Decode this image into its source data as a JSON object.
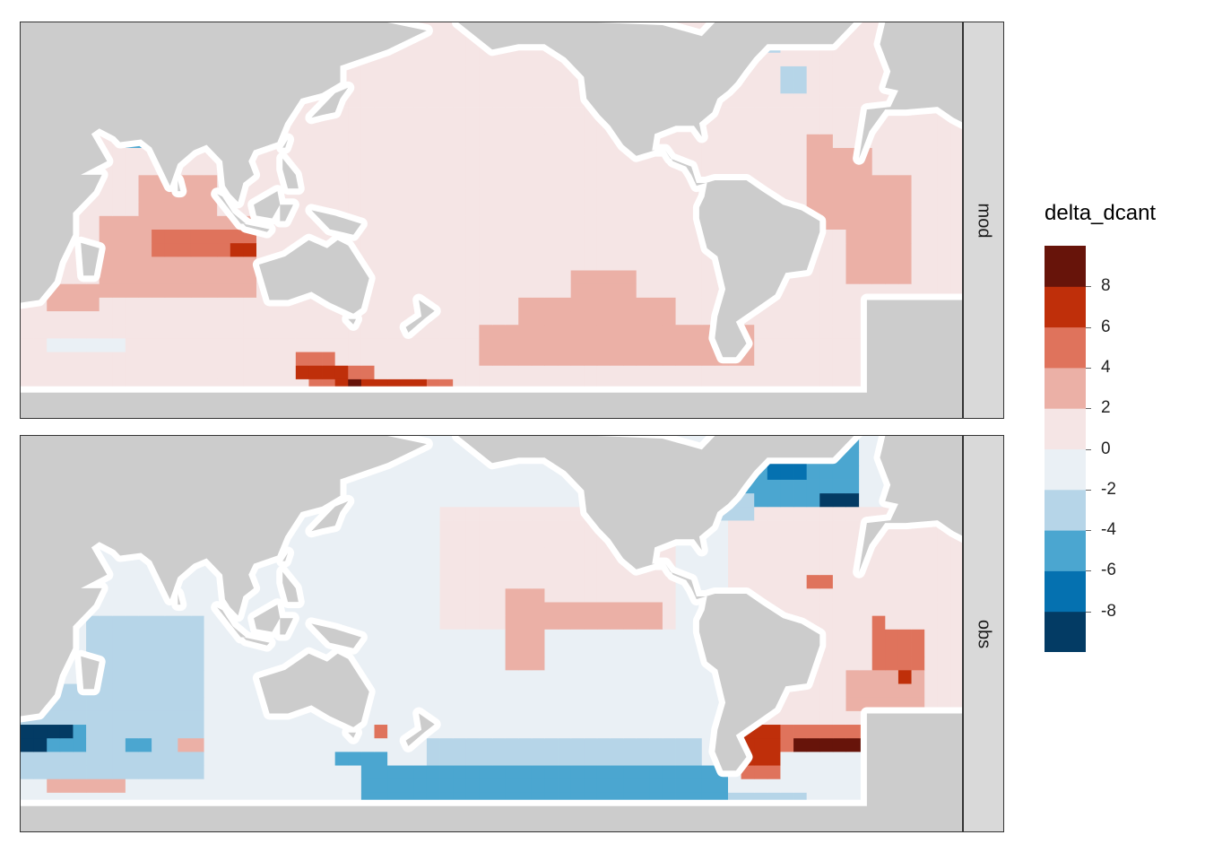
{
  "chart_data": {
    "type": "heatmap",
    "variable": "delta_dcant",
    "facets": [
      "mod",
      "obs"
    ],
    "legend": {
      "title": "delta_dcant",
      "placement": "right",
      "breaks": [
        -10,
        -8,
        -6,
        -4,
        -2,
        0,
        2,
        4,
        6,
        8,
        10
      ],
      "labels": [
        "8",
        "6",
        "4",
        "2",
        "0",
        "-2",
        "-4",
        "-6",
        "-8"
      ],
      "label_values": [
        8,
        6,
        4,
        2,
        0,
        -2,
        -4,
        -6,
        -8
      ],
      "colors": [
        "#033b64",
        "#0571b0",
        "#4ba6d0",
        "#b6d5e8",
        "#eaf0f5",
        "#f5e5e5",
        "#ebb0a6",
        "#df735c",
        "#bf2f0a",
        "#67140a"
      ]
    },
    "land_color": "#cccccc",
    "map": {
      "lon_range": [
        20,
        380
      ],
      "lat_range": [
        -78,
        68
      ],
      "cell_deg": 5,
      "facet_mod": [
        {
          "lon": [
            270,
            305
          ],
          "lat": [
            -45,
            -35
          ],
          "v": 1
        },
        {
          "lon": [
            195,
            300
          ],
          "lat": [
            -60,
            -45
          ],
          "v": 3
        },
        {
          "lon": [
            210,
            270
          ],
          "lat": [
            -45,
            -35
          ],
          "v": 3
        },
        {
          "lon": [
            230,
            255
          ],
          "lat": [
            -35,
            -25
          ],
          "v": 3
        },
        {
          "lon": [
            125,
            140
          ],
          "lat": [
            -65,
            -55
          ],
          "v": 5
        },
        {
          "lon": [
            130,
            155
          ],
          "lat": [
            -70,
            -60
          ],
          "v": 5
        },
        {
          "lon": [
            155,
            185
          ],
          "lat": [
            -72,
            -62
          ],
          "v": 5
        },
        {
          "lon": [
            125,
            145
          ],
          "lat": [
            -62,
            -57
          ],
          "v": 7
        },
        {
          "lon": [
            140,
            160
          ],
          "lat": [
            -67,
            -62
          ],
          "v": 7
        },
        {
          "lon": [
            160,
            175
          ],
          "lat": [
            -67,
            -62
          ],
          "v": 7
        },
        {
          "lon": [
            145,
            150
          ],
          "lat": [
            -70,
            -65
          ],
          "v": 9
        },
        {
          "lon": [
            30,
            50
          ],
          "lat": [
            -40,
            -30
          ],
          "v": 3
        },
        {
          "lon": [
            50,
            110
          ],
          "lat": [
            -35,
            -5
          ],
          "v": 3
        },
        {
          "lon": [
            65,
            95
          ],
          "lat": [
            -5,
            10
          ],
          "v": 3
        },
        {
          "lon": [
            70,
            95
          ],
          "lat": [
            -20,
            -8
          ],
          "v": 5
        },
        {
          "lon": [
            95,
            110
          ],
          "lat": [
            -20,
            -10
          ],
          "v": 5
        },
        {
          "lon": [
            102,
            112
          ],
          "lat": [
            -18,
            -12
          ],
          "v": 7
        },
        {
          "lon": [
            320,
            345
          ],
          "lat": [
            -10,
            20
          ],
          "v": 3
        },
        {
          "lon": [
            335,
            360
          ],
          "lat": [
            -30,
            10
          ],
          "v": 3
        },
        {
          "lon": [
            320,
            330
          ],
          "lat": [
            15,
            25
          ],
          "v": 3
        },
        {
          "lon": [
            65,
            80
          ],
          "lat": [
            20,
            30
          ],
          "v": -3
        },
        {
          "lon": [
            60,
            70
          ],
          "lat": [
            20,
            25
          ],
          "v": -5
        },
        {
          "lon": [
            285,
            300
          ],
          "lat": [
            55,
            65
          ],
          "v": -3
        },
        {
          "lon": [
            300,
            310
          ],
          "lat": [
            55,
            68
          ],
          "v": -3
        },
        {
          "lon": [
            290,
            300
          ],
          "lat": [
            62,
            68
          ],
          "v": -3
        },
        {
          "lon": [
            310,
            320
          ],
          "lat": [
            40,
            50
          ],
          "v": -3
        },
        {
          "lon": [
            345,
            370
          ],
          "lat": [
            -45,
            -35
          ],
          "v": -1
        },
        {
          "lon": [
            30,
            60
          ],
          "lat": [
            -55,
            -50
          ],
          "v": -1
        }
      ],
      "facet_obs": [
        {
          "lon": [
            20,
            90
          ],
          "lat": [
            -60,
            -25
          ],
          "v": -3
        },
        {
          "lon": [
            45,
            90
          ],
          "lat": [
            -25,
            0
          ],
          "v": -3
        },
        {
          "lon": [
            20,
            45
          ],
          "lat": [
            -50,
            -40
          ],
          "v": -5
        },
        {
          "lon": [
            20,
            30
          ],
          "lat": [
            -50,
            -40
          ],
          "v": -9
        },
        {
          "lon": [
            30,
            40
          ],
          "lat": [
            -45,
            -40
          ],
          "v": -9
        },
        {
          "lon": [
            60,
            70
          ],
          "lat": [
            -50,
            -45
          ],
          "v": -5
        },
        {
          "lon": [
            80,
            90
          ],
          "lat": [
            -50,
            -45
          ],
          "v": 3
        },
        {
          "lon": [
            70,
            80
          ],
          "lat": [
            22,
            28
          ],
          "v": 7
        },
        {
          "lon": [
            72,
            78
          ],
          "lat": [
            28,
            32
          ],
          "v": 9
        },
        {
          "lon": [
            155,
            160
          ],
          "lat": [
            -45,
            -40
          ],
          "v": 5
        },
        {
          "lon": [
            30,
            60
          ],
          "lat": [
            -65,
            -60
          ],
          "v": 3
        },
        {
          "lon": [
            140,
            160
          ],
          "lat": [
            -55,
            -48
          ],
          "v": -5
        },
        {
          "lon": [
            150,
            290
          ],
          "lat": [
            -68,
            -55
          ],
          "v": -5
        },
        {
          "lon": [
            175,
            280
          ],
          "lat": [
            -55,
            -45
          ],
          "v": -3
        },
        {
          "lon": [
            205,
            220
          ],
          "lat": [
            -18,
            10
          ],
          "v": 3
        },
        {
          "lon": [
            220,
            265
          ],
          "lat": [
            -5,
            5
          ],
          "v": 3
        },
        {
          "lon": [
            285,
            340
          ],
          "lat": [
            40,
            65
          ],
          "v": -5
        },
        {
          "lon": [
            305,
            320
          ],
          "lat": [
            50,
            68
          ],
          "v": -7
        },
        {
          "lon": [
            325,
            340
          ],
          "lat": [
            40,
            48
          ],
          "v": -9
        },
        {
          "lon": [
            280,
            300
          ],
          "lat": [
            35,
            45
          ],
          "v": -3
        },
        {
          "lon": [
            335,
            365
          ],
          "lat": [
            -35,
            -20
          ],
          "v": 3
        },
        {
          "lon": [
            345,
            365
          ],
          "lat": [
            -20,
            -5
          ],
          "v": 5
        },
        {
          "lon": [
            355,
            360
          ],
          "lat": [
            -25,
            -20
          ],
          "v": 7
        },
        {
          "lon": [
            295,
            365
          ],
          "lat": [
            -50,
            -40
          ],
          "v": 5
        },
        {
          "lon": [
            295,
            310
          ],
          "lat": [
            -55,
            -40
          ],
          "v": 7
        },
        {
          "lon": [
            315,
            365
          ],
          "lat": [
            -48,
            -43
          ],
          "v": 9
        },
        {
          "lon": [
            295,
            310
          ],
          "lat": [
            -60,
            -55
          ],
          "v": 5
        },
        {
          "lon": [
            295,
            300
          ],
          "lat": [
            -75,
            -70
          ],
          "v": -9
        },
        {
          "lon": [
            290,
            320
          ],
          "lat": [
            -75,
            -65
          ],
          "v": -3
        },
        {
          "lon": [
            320,
            330
          ],
          "lat": [
            10,
            15
          ],
          "v": 5
        },
        {
          "lon": [
            345,
            350
          ],
          "lat": [
            -5,
            0
          ],
          "v": 5
        }
      ]
    }
  }
}
